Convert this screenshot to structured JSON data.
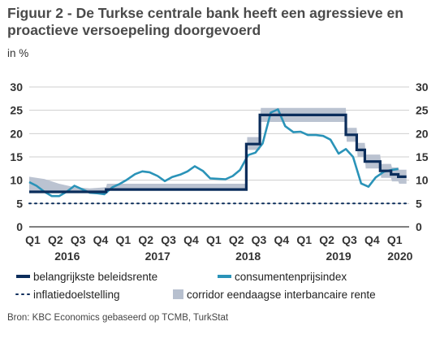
{
  "title": "Figuur 2 - De Turkse centrale bank heeft een agressieve en proactieve versoepeling doorgevoerd",
  "subtitle": "in %",
  "source": "Bron: KBC Economics gebaseerd op TCMB, TurkStat",
  "colors": {
    "policy_rate": "#0b2d5b",
    "cpi": "#2a93b8",
    "inflation_target": "#0b2d5b",
    "corridor": "#b7c0cf",
    "axis": "#333333",
    "grid": "#cfcfcf"
  },
  "chart_data": {
    "type": "line",
    "ylim": [
      0,
      30
    ],
    "yticks": [
      0,
      5,
      10,
      15,
      20,
      25,
      30
    ],
    "xlim": [
      2016.0,
      2020.2
    ],
    "quarter_ticks": [
      {
        "x": 2016.04,
        "label": "Q1"
      },
      {
        "x": 2016.29,
        "label": "Q2"
      },
      {
        "x": 2016.54,
        "label": "Q3"
      },
      {
        "x": 2016.79,
        "label": "Q4"
      },
      {
        "x": 2017.04,
        "label": "Q1"
      },
      {
        "x": 2017.29,
        "label": "Q2"
      },
      {
        "x": 2017.54,
        "label": "Q3"
      },
      {
        "x": 2017.79,
        "label": "Q4"
      },
      {
        "x": 2018.04,
        "label": "Q1"
      },
      {
        "x": 2018.29,
        "label": "Q2"
      },
      {
        "x": 2018.54,
        "label": "Q3"
      },
      {
        "x": 2018.79,
        "label": "Q4"
      },
      {
        "x": 2019.04,
        "label": "Q1"
      },
      {
        "x": 2019.29,
        "label": "Q2"
      },
      {
        "x": 2019.54,
        "label": "Q3"
      },
      {
        "x": 2019.79,
        "label": "Q4"
      },
      {
        "x": 2020.04,
        "label": "Q1"
      }
    ],
    "year_labels": [
      {
        "x": 2016.42,
        "label": "2016"
      },
      {
        "x": 2017.42,
        "label": "2017"
      },
      {
        "x": 2018.42,
        "label": "2018"
      },
      {
        "x": 2019.42,
        "label": "2019"
      },
      {
        "x": 2020.1,
        "label": "2020"
      }
    ],
    "legend": [
      {
        "name": "belangrijkste beleidsrente",
        "style": "line"
      },
      {
        "name": "consumentenprijsindex",
        "style": "line"
      },
      {
        "name": "inflatiedoelstelling",
        "style": "dotted"
      },
      {
        "name": "corridor eendaagse interbancaire rente",
        "style": "band"
      }
    ],
    "series": [
      {
        "name": "belangrijkste beleidsrente",
        "step": true,
        "points": [
          [
            2016.0,
            7.5
          ],
          [
            2016.85,
            7.5
          ],
          [
            2016.85,
            8.0
          ],
          [
            2018.4,
            8.0
          ],
          [
            2018.4,
            17.75
          ],
          [
            2018.55,
            17.75
          ],
          [
            2018.55,
            24.0
          ],
          [
            2019.5,
            24.0
          ],
          [
            2019.5,
            19.75
          ],
          [
            2019.62,
            19.75
          ],
          [
            2019.62,
            16.5
          ],
          [
            2019.71,
            16.5
          ],
          [
            2019.71,
            14.0
          ],
          [
            2019.88,
            14.0
          ],
          [
            2019.88,
            12.0
          ],
          [
            2020.0,
            12.0
          ],
          [
            2020.0,
            11.25
          ],
          [
            2020.08,
            11.25
          ],
          [
            2020.08,
            10.75
          ],
          [
            2020.17,
            10.75
          ]
        ]
      },
      {
        "name": "consumentenprijsindex",
        "points": [
          [
            2016.0,
            9.6
          ],
          [
            2016.08,
            8.8
          ],
          [
            2016.17,
            7.5
          ],
          [
            2016.25,
            6.6
          ],
          [
            2016.33,
            6.6
          ],
          [
            2016.42,
            7.6
          ],
          [
            2016.5,
            8.8
          ],
          [
            2016.58,
            8.1
          ],
          [
            2016.67,
            7.3
          ],
          [
            2016.75,
            7.2
          ],
          [
            2016.83,
            7.0
          ],
          [
            2016.92,
            8.5
          ],
          [
            2017.0,
            9.2
          ],
          [
            2017.08,
            10.1
          ],
          [
            2017.17,
            11.3
          ],
          [
            2017.25,
            11.9
          ],
          [
            2017.33,
            11.7
          ],
          [
            2017.42,
            10.9
          ],
          [
            2017.5,
            9.8
          ],
          [
            2017.58,
            10.7
          ],
          [
            2017.67,
            11.2
          ],
          [
            2017.75,
            11.9
          ],
          [
            2017.83,
            13.0
          ],
          [
            2017.92,
            12.0
          ],
          [
            2018.0,
            10.4
          ],
          [
            2018.08,
            10.3
          ],
          [
            2018.17,
            10.2
          ],
          [
            2018.25,
            10.9
          ],
          [
            2018.33,
            12.2
          ],
          [
            2018.42,
            15.4
          ],
          [
            2018.5,
            15.9
          ],
          [
            2018.58,
            17.9
          ],
          [
            2018.67,
            24.5
          ],
          [
            2018.75,
            25.2
          ],
          [
            2018.83,
            21.6
          ],
          [
            2018.92,
            20.3
          ],
          [
            2019.0,
            20.4
          ],
          [
            2019.08,
            19.7
          ],
          [
            2019.17,
            19.7
          ],
          [
            2019.25,
            19.5
          ],
          [
            2019.33,
            18.7
          ],
          [
            2019.42,
            15.7
          ],
          [
            2019.5,
            16.7
          ],
          [
            2019.58,
            15.0
          ],
          [
            2019.67,
            9.3
          ],
          [
            2019.75,
            8.6
          ],
          [
            2019.83,
            10.6
          ],
          [
            2019.92,
            11.8
          ],
          [
            2020.0,
            12.2
          ],
          [
            2020.08,
            12.4
          ]
        ]
      },
      {
        "name": "inflatiedoelstelling",
        "points": [
          [
            2016.0,
            5.0
          ],
          [
            2020.17,
            5.0
          ]
        ]
      },
      {
        "name": "corridor eendaagse interbancaire rente",
        "band": true,
        "points": [
          [
            2016.0,
            7.25,
            10.75
          ],
          [
            2016.17,
            7.25,
            10.25
          ],
          [
            2016.33,
            7.25,
            9.25
          ],
          [
            2016.5,
            7.25,
            8.5
          ],
          [
            2016.67,
            7.25,
            8.25
          ],
          [
            2016.85,
            7.5,
            8.5
          ],
          [
            2016.86,
            8.0,
            9.25
          ],
          [
            2018.4,
            8.0,
            9.25
          ],
          [
            2018.41,
            16.5,
            19.25
          ],
          [
            2018.55,
            16.5,
            19.25
          ],
          [
            2018.56,
            22.5,
            25.5
          ],
          [
            2019.5,
            22.5,
            25.5
          ],
          [
            2019.51,
            18.25,
            21.25
          ],
          [
            2019.62,
            18.25,
            21.25
          ],
          [
            2019.63,
            15.0,
            18.0
          ],
          [
            2019.71,
            15.0,
            18.0
          ],
          [
            2019.72,
            12.5,
            15.5
          ],
          [
            2019.88,
            12.5,
            15.5
          ],
          [
            2019.89,
            10.5,
            13.5
          ],
          [
            2020.0,
            10.5,
            13.5
          ],
          [
            2020.01,
            9.75,
            12.75
          ],
          [
            2020.08,
            9.75,
            12.75
          ],
          [
            2020.09,
            9.25,
            12.25
          ],
          [
            2020.17,
            9.25,
            12.25
          ]
        ]
      }
    ]
  }
}
